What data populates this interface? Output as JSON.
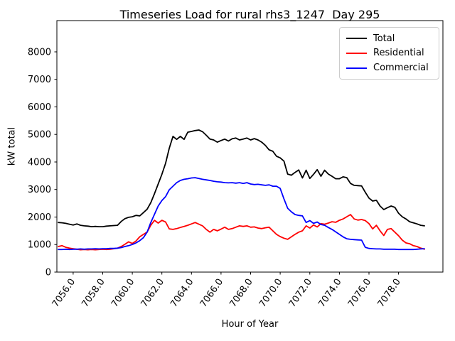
{
  "chart_data": {
    "type": "line",
    "title": "Timeseries Load for rural rhs3_1247  Day 295",
    "xlabel": "Hour of Year",
    "ylabel": "kW total",
    "grid": false,
    "legend_position": "upper-right",
    "xlim": [
      7054.9,
      7081.0
    ],
    "ylim": [
      0,
      9135
    ],
    "xticks": [
      7056.0,
      7058.0,
      7060.0,
      7062.0,
      7064.0,
      7066.0,
      7068.0,
      7070.0,
      7072.0,
      7074.0,
      7076.0,
      7078.0
    ],
    "xtick_labels": [
      "7056.0",
      "7058.0",
      "7060.0",
      "7062.0",
      "7064.0",
      "7066.0",
      "7068.0",
      "7070.0",
      "7072.0",
      "7074.0",
      "7076.0",
      "7078.0"
    ],
    "yticks": [
      0,
      1000,
      2000,
      3000,
      4000,
      5000,
      6000,
      7000,
      8000
    ],
    "x": [
      7055.0,
      7055.25,
      7055.5,
      7055.75,
      7056.0,
      7056.25,
      7056.5,
      7056.75,
      7057.0,
      7057.25,
      7057.5,
      7057.75,
      7058.0,
      7058.25,
      7058.5,
      7058.75,
      7059.0,
      7059.25,
      7059.5,
      7059.75,
      7060.0,
      7060.25,
      7060.5,
      7060.75,
      7061.0,
      7061.25,
      7061.5,
      7061.75,
      7062.0,
      7062.25,
      7062.5,
      7062.75,
      7063.0,
      7063.25,
      7063.5,
      7063.75,
      7064.0,
      7064.25,
      7064.5,
      7064.75,
      7065.0,
      7065.25,
      7065.5,
      7065.75,
      7066.0,
      7066.25,
      7066.5,
      7066.75,
      7067.0,
      7067.25,
      7067.5,
      7067.75,
      7068.0,
      7068.25,
      7068.5,
      7068.75,
      7069.0,
      7069.25,
      7069.5,
      7069.75,
      7070.0,
      7070.25,
      7070.5,
      7070.75,
      7071.0,
      7071.25,
      7071.5,
      7071.75,
      7072.0,
      7072.25,
      7072.5,
      7072.75,
      7073.0,
      7073.25,
      7073.5,
      7073.75,
      7074.0,
      7074.25,
      7074.5,
      7074.75,
      7075.0,
      7075.25,
      7075.5,
      7075.75,
      7076.0,
      7076.25,
      7076.5,
      7076.75,
      7077.0,
      7077.25,
      7077.5,
      7077.75,
      7078.0,
      7078.25,
      7078.5,
      7078.75,
      7079.0,
      7079.25,
      7079.5,
      7079.75
    ],
    "series": [
      {
        "name": "Total",
        "color": "#000000",
        "values": [
          1800,
          1790,
          1770,
          1740,
          1710,
          1750,
          1700,
          1680,
          1670,
          1650,
          1660,
          1650,
          1650,
          1670,
          1680,
          1690,
          1700,
          1840,
          1940,
          1990,
          2010,
          2060,
          2040,
          2160,
          2280,
          2520,
          2850,
          3200,
          3550,
          3950,
          4500,
          4930,
          4820,
          4930,
          4820,
          5080,
          5110,
          5140,
          5160,
          5100,
          4970,
          4830,
          4800,
          4720,
          4780,
          4830,
          4760,
          4840,
          4870,
          4800,
          4830,
          4870,
          4800,
          4850,
          4800,
          4720,
          4600,
          4440,
          4390,
          4210,
          4150,
          4030,
          3560,
          3520,
          3620,
          3710,
          3420,
          3700,
          3400,
          3550,
          3720,
          3480,
          3700,
          3560,
          3480,
          3390,
          3390,
          3460,
          3430,
          3220,
          3150,
          3140,
          3130,
          2900,
          2690,
          2580,
          2610,
          2400,
          2270,
          2340,
          2400,
          2350,
          2140,
          2010,
          1930,
          1830,
          1790,
          1750,
          1700,
          1680
        ]
      },
      {
        "name": "Residential",
        "color": "#ff0000",
        "values": [
          930,
          960,
          900,
          870,
          850,
          830,
          810,
          820,
          810,
          820,
          810,
          820,
          830,
          820,
          830,
          850,
          870,
          930,
          1010,
          1100,
          1040,
          1130,
          1280,
          1370,
          1450,
          1700,
          1880,
          1780,
          1880,
          1820,
          1570,
          1550,
          1580,
          1620,
          1660,
          1700,
          1750,
          1800,
          1740,
          1680,
          1550,
          1450,
          1550,
          1500,
          1560,
          1630,
          1550,
          1580,
          1630,
          1680,
          1660,
          1680,
          1630,
          1640,
          1600,
          1580,
          1610,
          1630,
          1500,
          1370,
          1290,
          1230,
          1190,
          1280,
          1370,
          1450,
          1500,
          1680,
          1600,
          1710,
          1640,
          1760,
          1740,
          1780,
          1830,
          1810,
          1880,
          1930,
          2010,
          2090,
          1930,
          1890,
          1910,
          1870,
          1760,
          1570,
          1700,
          1500,
          1330,
          1550,
          1580,
          1450,
          1320,
          1160,
          1060,
          1030,
          960,
          930,
          870,
          830
        ]
      },
      {
        "name": "Commercial",
        "color": "#0000ff",
        "values": [
          820,
          820,
          830,
          820,
          830,
          830,
          840,
          830,
          840,
          840,
          850,
          840,
          850,
          850,
          860,
          860,
          870,
          890,
          930,
          960,
          1000,
          1060,
          1140,
          1250,
          1450,
          1800,
          2100,
          2400,
          2600,
          2740,
          2990,
          3120,
          3250,
          3330,
          3370,
          3390,
          3420,
          3430,
          3400,
          3370,
          3350,
          3330,
          3300,
          3280,
          3270,
          3250,
          3240,
          3250,
          3230,
          3250,
          3220,
          3250,
          3200,
          3180,
          3190,
          3170,
          3150,
          3170,
          3120,
          3120,
          3040,
          2660,
          2320,
          2190,
          2090,
          2060,
          2040,
          1800,
          1870,
          1770,
          1820,
          1730,
          1700,
          1620,
          1550,
          1460,
          1370,
          1280,
          1210,
          1190,
          1180,
          1170,
          1160,
          900,
          860,
          850,
          840,
          840,
          830,
          830,
          830,
          830,
          820,
          820,
          820,
          820,
          820,
          830,
          840,
          850
        ]
      }
    ]
  }
}
